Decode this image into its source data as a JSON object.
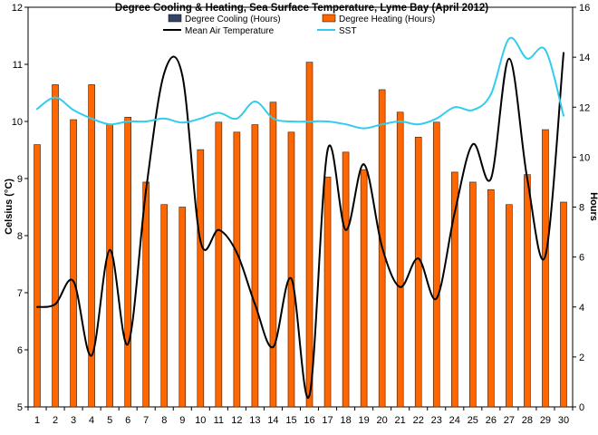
{
  "chart_data": {
    "type": "bar",
    "title": "Degree Cooling & Heating, Sea Surface Temperature, Lyme Bay (April 2012)",
    "ylabel": "Celsius (°C)",
    "y2label": "Hours",
    "xlabel": "",
    "ylim": [
      5,
      12
    ],
    "y2lim": [
      0,
      16
    ],
    "grid": false,
    "legend_position": "top",
    "categories": [
      "1",
      "2",
      "3",
      "4",
      "5",
      "6",
      "7",
      "8",
      "9",
      "10",
      "11",
      "12",
      "13",
      "14",
      "15",
      "16",
      "17",
      "18",
      "19",
      "20",
      "21",
      "22",
      "23",
      "24",
      "25",
      "26",
      "27",
      "28",
      "29",
      "30"
    ],
    "series": [
      {
        "name": "Degree Cooling (Hours)",
        "kind": "bar",
        "axis": "right",
        "color": "#334466",
        "values": [
          0,
          0,
          0,
          0,
          0,
          0,
          0,
          0,
          0,
          0,
          0,
          0,
          0,
          0,
          0,
          0,
          0,
          0,
          0,
          0,
          0,
          0,
          0,
          0,
          0,
          0,
          0,
          0,
          0,
          0
        ]
      },
      {
        "name": "Degree Heating (Hours)",
        "kind": "bar",
        "axis": "right",
        "color": "#ff6600",
        "values": [
          10.5,
          12.9,
          11.5,
          12.9,
          11.3,
          11.6,
          9.0,
          8.1,
          8.0,
          10.3,
          11.4,
          11.0,
          11.3,
          12.2,
          11.0,
          13.8,
          9.2,
          10.2,
          9.5,
          12.7,
          11.8,
          10.8,
          11.4,
          9.4,
          9.0,
          8.7,
          8.1,
          9.3,
          11.1,
          8.2
        ]
      },
      {
        "name": "Mean Air Temperature",
        "kind": "line",
        "axis": "left",
        "color": "#000000",
        "values": [
          6.75,
          6.8,
          7.2,
          5.9,
          7.75,
          6.1,
          8.8,
          10.85,
          10.8,
          7.9,
          8.1,
          7.7,
          6.8,
          6.05,
          7.25,
          5.2,
          9.5,
          8.1,
          9.25,
          7.8,
          7.1,
          7.6,
          6.9,
          8.4,
          9.6,
          9.0,
          11.1,
          9.0,
          7.65,
          11.2
        ]
      },
      {
        "name": "SST",
        "kind": "line",
        "axis": "left",
        "color": "#33ccee",
        "values": [
          10.22,
          10.42,
          10.2,
          10.05,
          9.95,
          10.0,
          10.0,
          10.05,
          9.98,
          10.05,
          10.15,
          10.05,
          10.35,
          10.05,
          10.0,
          10.0,
          10.0,
          9.95,
          9.88,
          9.95,
          10.0,
          9.95,
          10.05,
          10.25,
          10.2,
          10.48,
          11.45,
          11.1,
          11.25,
          10.1
        ]
      }
    ],
    "left_ticks": [
      "5",
      "6",
      "7",
      "8",
      "9",
      "10",
      "11",
      "12"
    ],
    "right_ticks": [
      "0",
      "2",
      "4",
      "6",
      "8",
      "10",
      "12",
      "14",
      "16"
    ]
  }
}
